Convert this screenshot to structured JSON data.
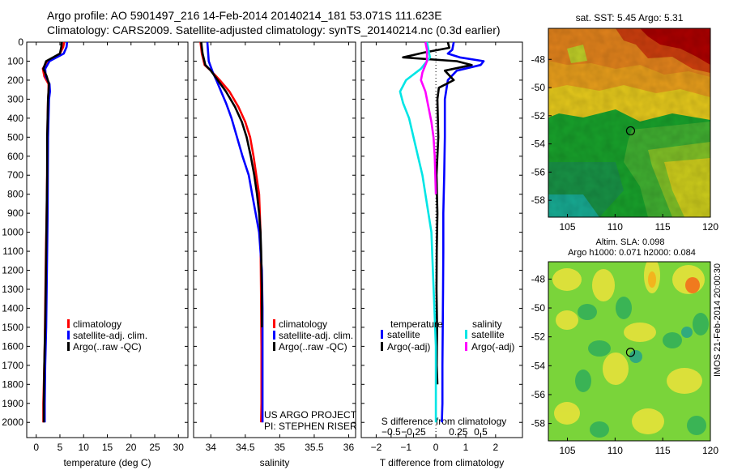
{
  "header": {
    "line1": "Argo profile: AO 5901497_216 14-Feb-2014 20140214_181 53.071S 111.623E",
    "line2": "Climatology: CARS2009. Satellite-adjusted climatology: synTS_20140214.nc (0.3d earlier)"
  },
  "depth_ticks": [
    "0",
    "100",
    "200",
    "300",
    "400",
    "500",
    "600",
    "700",
    "800",
    "900",
    "1000",
    "1100",
    "1200",
    "1300",
    "1400",
    "1500",
    "1600",
    "1700",
    "1800",
    "1900",
    "2000"
  ],
  "colors": {
    "climatology": "#ff0000",
    "satellite": "#0000ff",
    "argo": "#000000",
    "sat_salinity": "#00e5e5",
    "argo_salinity": "#ff00ff"
  },
  "chart_data": [
    {
      "type": "line",
      "xlabel": "temperature (deg C)",
      "xlim": [
        -2,
        32
      ],
      "xticks": [
        0,
        5,
        10,
        15,
        20,
        25,
        30
      ],
      "xtick_labels": [
        "0",
        "5",
        "10",
        "15",
        "20",
        "25",
        "30"
      ],
      "ylim": [
        2080,
        0
      ],
      "legend": {
        "placement": "bottom-right",
        "entries": [
          "climatology",
          "satellite-adj. clim.",
          "Argo(..raw -QC)"
        ]
      },
      "series": [
        {
          "name": "climatology",
          "color": "#ff0000",
          "x": [
            5.9,
            5.7,
            5.0,
            2.3,
            1.4,
            1.7,
            2.6,
            2.6,
            2.5,
            2.4,
            2.35,
            2.3,
            2.2,
            2.05,
            1.95,
            1.85,
            1.8,
            1.7,
            1.6,
            1.5,
            1.5
          ],
          "y": [
            0,
            25,
            60,
            100,
            140,
            180,
            220,
            260,
            300,
            400,
            500,
            700,
            900,
            1100,
            1300,
            1500,
            1600,
            1700,
            1800,
            1900,
            2000
          ]
        },
        {
          "name": "satellite-adj. clim.",
          "color": "#0000ff",
          "x": [
            6.5,
            6.4,
            5.8,
            2.8,
            1.9,
            2.0,
            2.8,
            2.9,
            2.7,
            2.6,
            2.5,
            2.45,
            2.4,
            2.3,
            2.2,
            2.1,
            2.0,
            1.9,
            1.85,
            1.8,
            1.8
          ],
          "y": [
            0,
            25,
            60,
            100,
            140,
            180,
            220,
            260,
            300,
            400,
            500,
            700,
            900,
            1100,
            1300,
            1500,
            1600,
            1700,
            1800,
            1900,
            2000
          ]
        },
        {
          "name": "Argo(..raw -QC)",
          "color": "#000000",
          "x": [
            5.4,
            5.3,
            5.0,
            2.1,
            1.5,
            2.2,
            2.7,
            2.6,
            2.5,
            2.4,
            2.3,
            2.3,
            2.2,
            2.1,
            2.0,
            1.9,
            1.8,
            1.7,
            1.65,
            1.6,
            1.6
          ],
          "y": [
            0,
            25,
            60,
            100,
            140,
            180,
            220,
            260,
            300,
            400,
            500,
            700,
            900,
            1100,
            1300,
            1500,
            1600,
            1700,
            1800,
            1900,
            2000
          ]
        }
      ]
    },
    {
      "type": "line",
      "xlabel": "salinity",
      "xlim": [
        33.75,
        36.1
      ],
      "xticks": [
        34,
        34.5,
        35,
        35.5,
        36
      ],
      "xtick_labels": [
        "34",
        "34.5",
        "35",
        "35.5",
        "36"
      ],
      "ylim": [
        2080,
        0
      ],
      "legend": {
        "placement": "bottom-right",
        "entries": [
          "climatology",
          "satellite-adj. clim.",
          "Argo(..raw -QC)"
        ]
      },
      "annotation": [
        "US ARGO PROJECT",
        "PI: STEPHEN RISER"
      ],
      "series": [
        {
          "name": "climatology",
          "color": "#ff0000",
          "x": [
            33.85,
            33.87,
            33.91,
            34.0,
            34.13,
            34.27,
            34.4,
            34.5,
            34.57,
            34.62,
            34.66,
            34.7,
            34.72,
            34.725,
            34.73,
            34.735,
            34.735,
            34.735,
            34.73
          ],
          "y": [
            0,
            60,
            120,
            150,
            200,
            260,
            340,
            420,
            500,
            600,
            700,
            800,
            1000,
            1200,
            1400,
            1600,
            1800,
            1900,
            2000
          ]
        },
        {
          "name": "satellite-adj. clim.",
          "color": "#0000ff",
          "x": [
            33.95,
            33.97,
            34.03,
            34.08,
            34.15,
            34.22,
            34.3,
            34.38,
            34.46,
            34.55,
            34.6,
            34.65,
            34.7,
            34.72,
            34.74,
            34.75,
            34.75,
            34.75,
            34.75,
            34.75,
            34.75
          ],
          "y": [
            0,
            100,
            160,
            200,
            260,
            320,
            400,
            500,
            600,
            700,
            800,
            900,
            1000,
            1100,
            1200,
            1400,
            1500,
            1600,
            1800,
            1900,
            2000
          ]
        },
        {
          "name": "Argo(..raw -QC)",
          "color": "#000000",
          "x": [
            33.86,
            33.88,
            33.92,
            34.0,
            34.1,
            34.22,
            34.35,
            34.45,
            34.52,
            34.58,
            34.63,
            34.67,
            34.7,
            34.72,
            34.73,
            34.735,
            34.74,
            34.74,
            34.74
          ],
          "y": [
            0,
            60,
            120,
            150,
            200,
            260,
            340,
            420,
            500,
            600,
            700,
            800,
            900,
            1000,
            1100,
            1200,
            1300,
            1400,
            1500
          ]
        }
      ]
    },
    {
      "type": "line",
      "xlabel": "T difference from climatology",
      "xlabel_top": "S difference from climatology",
      "xlim": [
        -2.5,
        2.9
      ],
      "xticks": [
        -2,
        -1,
        0,
        1,
        2
      ],
      "xtick_labels": [
        "−2",
        "−1",
        "0",
        "1",
        "2"
      ],
      "top_ticks": [
        -1.5,
        -0.75,
        0.75,
        1.5
      ],
      "top_tick_labels": [
        "−0.5",
        "−0.25",
        "0.25",
        "0.5"
      ],
      "ylim": [
        2080,
        0
      ],
      "legend": {
        "placement": "bottom",
        "group_labels": [
          "temperature",
          "salinity"
        ],
        "entries": [
          "satellite",
          "Argo(-adj)",
          "satellite",
          "Argo(-adj)"
        ]
      },
      "series": [
        {
          "name": "temperature satellite",
          "color": "#0000ff",
          "x": [
            0.6,
            0.55,
            0.4,
            0.8,
            1.6,
            1.5,
            0.7,
            0.4,
            0.3,
            0.3,
            0.28,
            0.25,
            0.25,
            0.24,
            0.23,
            0.22,
            0.22,
            0.2
          ],
          "y": [
            0,
            40,
            60,
            80,
            100,
            120,
            150,
            200,
            300,
            500,
            700,
            900,
            1100,
            1300,
            1500,
            1700,
            1900,
            2000
          ]
        },
        {
          "name": "temperature Argo(-adj)",
          "color": "#000000",
          "x": [
            0.4,
            0.45,
            -0.4,
            -1.1,
            0.7,
            1.2,
            0.3,
            0.6,
            0.1,
            0.05,
            0.08,
            0.02,
            0.05,
            0.03,
            0.02,
            0.04,
            0.03,
            0.05
          ],
          "y": [
            0,
            30,
            55,
            80,
            100,
            120,
            150,
            200,
            240,
            300,
            500,
            700,
            900,
            1100,
            1300,
            1500,
            1700,
            1800
          ]
        },
        {
          "name": "salinity satellite",
          "color": "#00e5e5",
          "x": [
            -0.3,
            -0.2,
            -0.5,
            -1.0,
            -1.2,
            -1.1,
            -0.9,
            -0.75,
            -0.6,
            -0.45,
            -0.35,
            -0.25,
            -0.15,
            -0.1,
            -0.05,
            0.0,
            0.0
          ],
          "y": [
            0,
            80,
            140,
            200,
            260,
            320,
            400,
            500,
            600,
            700,
            800,
            900,
            1000,
            1200,
            1400,
            1600,
            2000
          ]
        },
        {
          "name": "salinity Argo(-adj)",
          "color": "#ff00ff",
          "x": [
            -0.35,
            -0.3,
            -0.3,
            -0.45,
            -0.5,
            -0.35,
            -0.25,
            -0.15,
            -0.08,
            -0.04,
            -0.02,
            0.0
          ],
          "y": [
            0,
            40,
            100,
            160,
            200,
            260,
            340,
            420,
            500,
            600,
            700,
            800
          ]
        }
      ]
    },
    {
      "type": "heatmap",
      "title": "sat. SST: 5.45 Argo: 5.31",
      "xlim": [
        103,
        120
      ],
      "ylim": [
        -59.2,
        -45.8
      ],
      "xticks": [
        105,
        110,
        115,
        120
      ],
      "xtick_labels": [
        "105",
        "110",
        "115",
        "120"
      ],
      "yticks": [
        -48,
        -50,
        -52,
        -54,
        -56,
        -58
      ],
      "ytick_labels": [
        "-48",
        "-50",
        "-52",
        "-54",
        "-56",
        "-58"
      ],
      "marker": {
        "lon": 111.623,
        "lat": -53.071
      }
    },
    {
      "type": "heatmap",
      "title": "Altim. SLA: 0.098",
      "subtitle": "Argo h1000: 0.071 h2000: 0.084",
      "xlim": [
        103,
        120
      ],
      "ylim": [
        -59.2,
        -46.8
      ],
      "xticks": [
        105,
        110,
        115,
        120
      ],
      "xtick_labels": [
        "105",
        "110",
        "115",
        "120"
      ],
      "yticks": [
        -48,
        -50,
        -52,
        -54,
        -56,
        -58
      ],
      "ytick_labels": [
        "-48",
        "-50",
        "-52",
        "-54",
        "-56",
        "-58"
      ],
      "marker": {
        "lon": 111.623,
        "lat": -53.071
      },
      "side_label": "IMOS 21-Feb-2014 20:00:30"
    }
  ]
}
